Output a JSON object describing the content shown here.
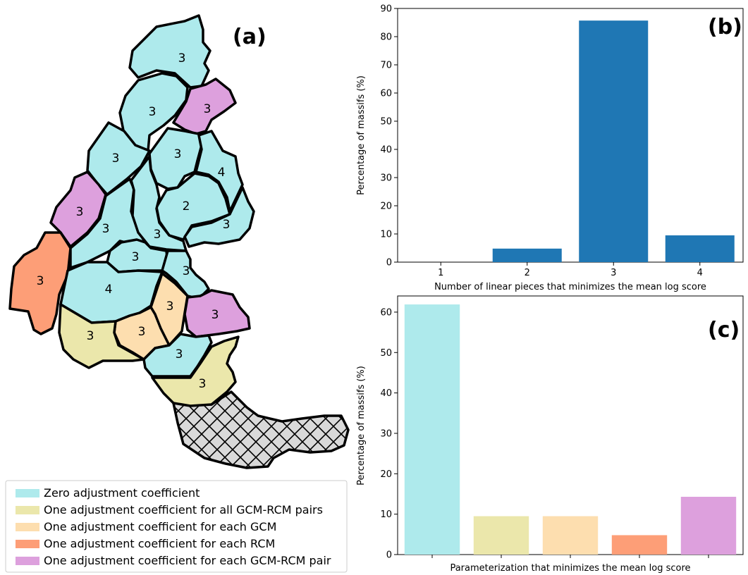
{
  "map": {
    "label": "(a)",
    "massifs": [
      {
        "value": "3",
        "category": "zero"
      },
      {
        "value": "3",
        "category": "zero"
      },
      {
        "value": "3",
        "category": "pair"
      },
      {
        "value": "3",
        "category": "zero"
      },
      {
        "value": "3",
        "category": "zero"
      },
      {
        "value": "4",
        "category": "zero"
      },
      {
        "value": "3",
        "category": "pair"
      },
      {
        "value": "2",
        "category": "zero"
      },
      {
        "value": "3",
        "category": "zero"
      },
      {
        "value": "3",
        "category": "zero"
      },
      {
        "value": "3",
        "category": "zero"
      },
      {
        "value": "3",
        "category": "zero"
      },
      {
        "value": "3",
        "category": "rcm"
      },
      {
        "value": "3",
        "category": "zero"
      },
      {
        "value": "4",
        "category": "zero"
      },
      {
        "value": "3",
        "category": "gcm"
      },
      {
        "value": "3",
        "category": "pair"
      },
      {
        "value": "3",
        "category": "gcm"
      },
      {
        "value": "3",
        "category": "all"
      },
      {
        "value": "3",
        "category": "zero"
      },
      {
        "value": "3",
        "category": "all"
      }
    ]
  },
  "legend": {
    "items": [
      {
        "key": "zero",
        "label": "Zero adjustment coefficient",
        "color": "#aeeaec"
      },
      {
        "key": "all",
        "label": "One adjustment coefficient for all GCM-RCM pairs",
        "color": "#ebe7ab"
      },
      {
        "key": "gcm",
        "label": "One adjustment coefficient for each GCM",
        "color": "#fddeaf"
      },
      {
        "key": "rcm",
        "label": "One adjustment coefficient for each RCM",
        "color": "#fd9e77"
      },
      {
        "key": "pair",
        "label": "One adjustment coefficient for each GCM-RCM pair",
        "color": "#dda0dd"
      }
    ]
  },
  "chart_data": [
    {
      "panel": "(b)",
      "type": "bar",
      "categories": [
        "1",
        "2",
        "3",
        "4"
      ],
      "values": [
        0,
        4.8,
        85.7,
        9.5
      ],
      "xlabel": "Number of linear pieces that minimizes the mean log score",
      "ylabel": "Percentage of massifs (%)",
      "ylim": [
        0,
        90
      ],
      "yticks": [
        "0",
        "10",
        "20",
        "30",
        "40",
        "50",
        "60",
        "70",
        "80",
        "90"
      ],
      "bar_color": "#1f77b4"
    },
    {
      "panel": "(c)",
      "type": "bar",
      "categories": [
        "",
        "",
        "",
        "",
        ""
      ],
      "values": [
        61.9,
        9.5,
        9.5,
        4.8,
        14.3
      ],
      "colors": [
        "#aeeaec",
        "#ebe7ab",
        "#fddeaf",
        "#fd9e77",
        "#dda0dd"
      ],
      "xlabel": "Parameterization that minimizes the mean log score",
      "ylabel": "Percentage of massifs (%)",
      "ylim": [
        0,
        64
      ],
      "yticks": [
        "0",
        "10",
        "20",
        "30",
        "40",
        "50",
        "60"
      ]
    }
  ]
}
